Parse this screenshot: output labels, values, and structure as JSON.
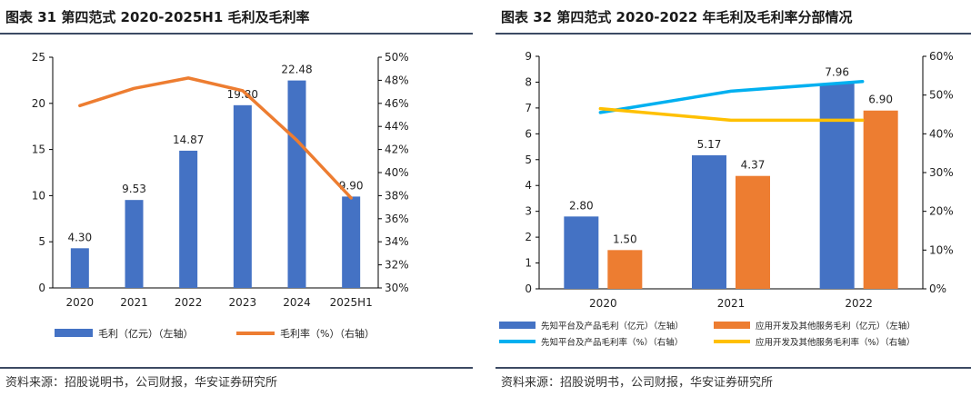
{
  "left_panel": {
    "title": "图表 31 第四范式 2020-2025H1 毛利及毛利率",
    "source": "资料来源：招股说明书，公司财报，华安证券研究所"
  },
  "right_panel": {
    "title": "图表 32 第四范式 2020-2022 年毛利及毛利率分部情况",
    "source": "资料来源：招股说明书，公司财报，华安证券研究所"
  },
  "chart_data": [
    {
      "type": "bar",
      "categories": [
        "2020",
        "2021",
        "2022",
        "2023",
        "2024",
        "2025H1"
      ],
      "series": [
        {
          "name": "毛利（亿元）（左轴）",
          "kind": "bar",
          "axis": "left",
          "color": "#4472c4",
          "values": [
            4.3,
            9.53,
            14.87,
            19.8,
            22.48,
            9.9
          ],
          "labels": [
            "4.30",
            "9.53",
            "14.87",
            "19.80",
            "22.48",
            "9.90"
          ]
        },
        {
          "name": "毛利率（%）（右轴）",
          "kind": "line",
          "axis": "right",
          "color": "#ed7d31",
          "values": [
            45.8,
            47.3,
            48.2,
            47.1,
            42.8,
            37.8
          ]
        }
      ],
      "ylim_left": [
        0,
        25
      ],
      "yticks_left": [
        "0",
        "5",
        "10",
        "15",
        "20",
        "25"
      ],
      "ylim_right": [
        30,
        50
      ],
      "yticks_right": [
        "30%",
        "32%",
        "34%",
        "36%",
        "38%",
        "40%",
        "42%",
        "44%",
        "46%",
        "48%",
        "50%"
      ],
      "legend_position": "bottom",
      "grid": false
    },
    {
      "type": "bar",
      "categories": [
        "2020",
        "2021",
        "2022"
      ],
      "series": [
        {
          "name": "先知平台及产品毛利（亿元）（左轴）",
          "kind": "bar",
          "axis": "left",
          "color": "#4472c4",
          "values": [
            2.8,
            5.17,
            7.96
          ],
          "labels": [
            "2.80",
            "5.17",
            "7.96"
          ]
        },
        {
          "name": "应用开发及其他服务毛利（亿元）（左轴）",
          "kind": "bar",
          "axis": "left",
          "color": "#ed7d31",
          "values": [
            1.5,
            4.37,
            6.9
          ],
          "labels": [
            "1.50",
            "4.37",
            "6.90"
          ]
        },
        {
          "name": "先知平台及产品毛利率（%）（右轴）",
          "kind": "line",
          "axis": "right",
          "color": "#00b0f0",
          "values": [
            45.5,
            51.0,
            53.5
          ]
        },
        {
          "name": "应用开发及其他服务毛利率（%）（右轴）",
          "kind": "line",
          "axis": "right",
          "color": "#ffc000",
          "values": [
            46.5,
            43.5,
            43.5
          ]
        }
      ],
      "ylim_left": [
        0,
        9
      ],
      "yticks_left": [
        "0",
        "1",
        "2",
        "3",
        "4",
        "5",
        "6",
        "7",
        "8",
        "9"
      ],
      "ylim_right": [
        0,
        60
      ],
      "yticks_right": [
        "0%",
        "10%",
        "20%",
        "30%",
        "40%",
        "50%",
        "60%"
      ],
      "legend_position": "bottom",
      "grid": false
    }
  ]
}
